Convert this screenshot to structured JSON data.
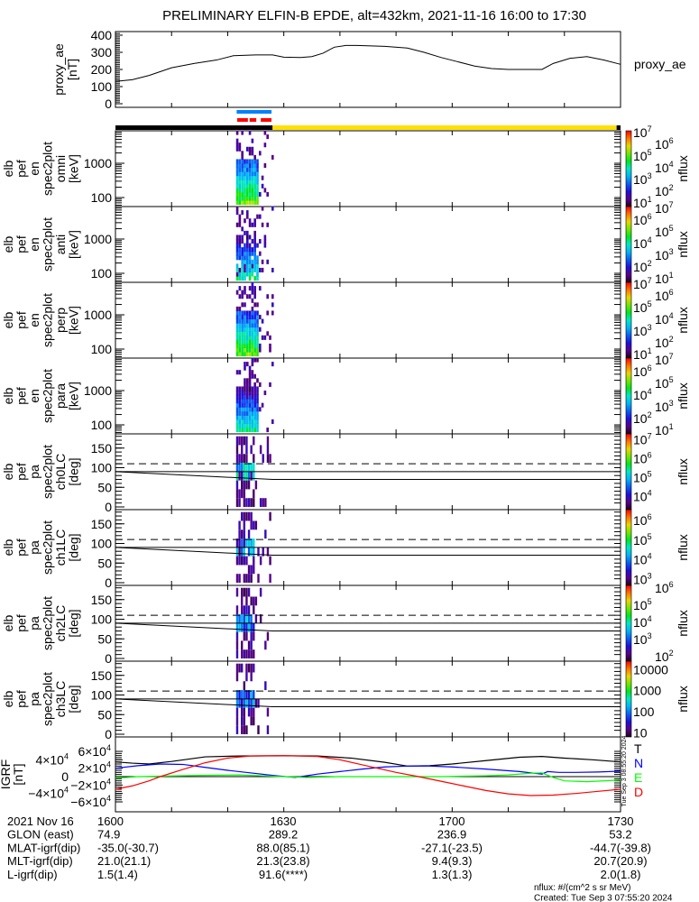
{
  "title": "PRELIMINARY ELFIN-B EPDE, alt=432km, 2021-11-16 16:00 to 17:30",
  "chart_data": [
    {
      "type": "line",
      "name": "proxy_ae",
      "ylabel_lines": [
        "proxy_ae",
        "[nT]"
      ],
      "legend": "proxy_ae",
      "ylim": [
        0,
        410
      ],
      "yticks": [
        "0",
        "100",
        "200",
        "300",
        "400"
      ],
      "t_min": [
        0,
        3,
        6,
        10,
        14,
        18,
        21,
        25,
        28,
        30,
        33,
        35,
        37,
        39,
        41,
        43,
        48,
        52,
        55,
        58,
        61,
        64,
        67,
        70,
        73,
        76,
        78,
        81,
        84,
        87,
        90
      ],
      "values": [
        130,
        140,
        165,
        210,
        235,
        255,
        280,
        285,
        285,
        272,
        270,
        275,
        295,
        330,
        340,
        340,
        335,
        325,
        300,
        270,
        245,
        220,
        205,
        200,
        200,
        200,
        235,
        265,
        275,
        255,
        230
      ]
    },
    {
      "type": "heatmap",
      "name": "omni",
      "ylabel_lines": [
        "elb",
        "pef",
        "en",
        "spec2plot",
        "omni",
        "[keV]"
      ],
      "yticks": [
        "1000",
        "100"
      ],
      "colorbar_label": "nflux",
      "colorbar_ticks": [
        {
          "base": "10",
          "exp": "7",
          "log": 7
        },
        {
          "base": "10",
          "exp": "6",
          "log": 6
        },
        {
          "base": "10",
          "exp": "5",
          "log": 5
        },
        {
          "base": "10",
          "exp": "4",
          "log": 4
        },
        {
          "base": "10",
          "exp": "3",
          "log": 3
        },
        {
          "base": "10",
          "exp": "2",
          "log": 2
        },
        {
          "base": "10",
          "exp": "1",
          "log": 1
        }
      ],
      "colorbar_range_log": [
        0.7,
        7.15
      ]
    },
    {
      "type": "heatmap",
      "name": "anti",
      "ylabel_lines": [
        "elb",
        "pef",
        "en",
        "spec2plot",
        "anti",
        "[keV]"
      ],
      "yticks": [
        "1000",
        "100"
      ],
      "colorbar_label": "nflux",
      "colorbar_ticks": [
        {
          "base": "10",
          "exp": "7",
          "log": 7
        },
        {
          "base": "10",
          "exp": "6",
          "log": 6
        },
        {
          "base": "10",
          "exp": "5",
          "log": 5
        },
        {
          "base": "10",
          "exp": "4",
          "log": 4
        },
        {
          "base": "10",
          "exp": "3",
          "log": 3
        },
        {
          "base": "10",
          "exp": "2",
          "log": 2
        },
        {
          "base": "10",
          "exp": "1",
          "log": 1
        }
      ],
      "colorbar_range_log": [
        0.7,
        7.15
      ]
    },
    {
      "type": "heatmap",
      "name": "perp",
      "ylabel_lines": [
        "elb",
        "pef",
        "en",
        "spec2plot",
        "perp",
        "[keV]"
      ],
      "yticks": [
        "1000",
        "100"
      ],
      "colorbar_label": "nflux",
      "colorbar_ticks": [
        {
          "base": "10",
          "exp": "7",
          "log": 7
        },
        {
          "base": "10",
          "exp": "6",
          "log": 6
        },
        {
          "base": "10",
          "exp": "5",
          "log": 5
        },
        {
          "base": "10",
          "exp": "4",
          "log": 4
        },
        {
          "base": "10",
          "exp": "3",
          "log": 3
        },
        {
          "base": "10",
          "exp": "2",
          "log": 2
        },
        {
          "base": "10",
          "exp": "1",
          "log": 1
        }
      ],
      "colorbar_range_log": [
        0.7,
        7.15
      ]
    },
    {
      "type": "heatmap",
      "name": "para",
      "ylabel_lines": [
        "elb",
        "pef",
        "en",
        "spec2plot",
        "para",
        "[keV]"
      ],
      "yticks": [
        "1000",
        "100"
      ],
      "colorbar_label": "nflux",
      "colorbar_ticks": [
        {
          "base": "10",
          "exp": "7",
          "log": 7
        },
        {
          "base": "10",
          "exp": "6",
          "log": 6
        },
        {
          "base": "10",
          "exp": "5",
          "log": 5
        },
        {
          "base": "10",
          "exp": "4",
          "log": 4
        },
        {
          "base": "10",
          "exp": "3",
          "log": 3
        },
        {
          "base": "10",
          "exp": "2",
          "log": 2
        },
        {
          "base": "10",
          "exp": "1",
          "log": 1
        }
      ],
      "colorbar_range_log": [
        0.7,
        7.15
      ]
    },
    {
      "type": "heatmap",
      "name": "ch0LC",
      "ylabel_lines": [
        "elb",
        "pef",
        "pa",
        "spec2plot",
        "ch0LC",
        "[deg]"
      ],
      "yticks": [
        "0",
        "50",
        "100",
        "150"
      ],
      "colorbar_label": "nflux",
      "colorbar_ticks": [
        {
          "base": "10",
          "exp": "7",
          "log": 7
        },
        {
          "base": "10",
          "exp": "6",
          "log": 6
        },
        {
          "base": "10",
          "exp": "5",
          "log": 5
        },
        {
          "base": "10",
          "exp": "4",
          "log": 4
        }
      ],
      "colorbar_range_log": [
        3.3,
        7.3
      ]
    },
    {
      "type": "heatmap",
      "name": "ch1LC",
      "ylabel_lines": [
        "elb",
        "pef",
        "pa",
        "spec2plot",
        "ch1LC",
        "[deg]"
      ],
      "yticks": [
        "0",
        "50",
        "100",
        "150"
      ],
      "colorbar_label": "nflux",
      "colorbar_ticks": [
        {
          "base": "10",
          "exp": "6",
          "log": 6
        },
        {
          "base": "10",
          "exp": "5",
          "log": 5
        },
        {
          "base": "10",
          "exp": "4",
          "log": 4
        },
        {
          "base": "10",
          "exp": "3",
          "log": 3
        }
      ],
      "colorbar_range_log": [
        2.7,
        6.55
      ]
    },
    {
      "type": "heatmap",
      "name": "ch2LC",
      "ylabel_lines": [
        "elb",
        "pef",
        "pa",
        "spec2plot",
        "ch2LC",
        "[deg]"
      ],
      "yticks": [
        "0",
        "50",
        "100",
        "150"
      ],
      "colorbar_label": "nflux",
      "colorbar_ticks": [
        {
          "base": "10",
          "exp": "6",
          "log": 6
        },
        {
          "base": "10",
          "exp": "5",
          "log": 5
        },
        {
          "base": "10",
          "exp": "4",
          "log": 4
        },
        {
          "base": "10",
          "exp": "3",
          "log": 3
        },
        {
          "base": "10",
          "exp": "2",
          "log": 2
        }
      ],
      "colorbar_range_log": [
        1.73,
        6.15
      ]
    },
    {
      "type": "heatmap",
      "name": "ch3LC",
      "ylabel_lines": [
        "elb",
        "pef",
        "pa",
        "spec2plot",
        "ch3LC",
        "[deg]"
      ],
      "yticks": [
        "0",
        "50",
        "100",
        "150"
      ],
      "colorbar_label": "nflux",
      "colorbar_ticks": [
        {
          "base": "10000",
          "exp": "",
          "log": 4
        },
        {
          "base": "1000",
          "exp": "",
          "log": 3
        },
        {
          "base": "100",
          "exp": "",
          "log": 2
        },
        {
          "base": "10",
          "exp": "",
          "log": 1
        }
      ],
      "colorbar_range_log": [
        0.8,
        4.4
      ]
    },
    {
      "type": "line",
      "name": "IGRF",
      "ylabel_lines": [
        "IGRF",
        "[nT]"
      ],
      "ylim": [
        -66000,
        66000
      ],
      "yticks": [
        {
          "base": "6×10",
          "exp": "4",
          "v": 60000
        },
        {
          "base": "4×10",
          "exp": "4",
          "v": 40000
        },
        {
          "base": "2×10",
          "exp": "4",
          "v": 20000
        },
        {
          "base": "0",
          "exp": "",
          "v": 0
        },
        {
          "base": "−2×10",
          "exp": "4",
          "v": -20000
        },
        {
          "base": "−4×10",
          "exp": "4",
          "v": -40000
        },
        {
          "base": "−6×10",
          "exp": "4",
          "v": -60000
        }
      ],
      "side_stamp": "Tue Sep  3 08:55:20 2024",
      "series": [
        {
          "name": "T",
          "color": "#000000",
          "t_min": [
            0,
            3,
            6,
            10,
            16,
            22,
            30,
            36,
            42,
            48,
            52,
            56,
            60,
            66,
            72,
            76,
            80,
            85,
            90
          ],
          "values": [
            35000,
            32000,
            30000,
            36000,
            47000,
            49000,
            49500,
            49000,
            44000,
            34000,
            25000,
            26000,
            30000,
            38000,
            46000,
            48000,
            44000,
            40000,
            35000
          ]
        },
        {
          "name": "N",
          "color": "#0000ff",
          "t_min": [
            0,
            4,
            8,
            12,
            16,
            20,
            24,
            28,
            32,
            36,
            40,
            44,
            48,
            52,
            56,
            60,
            66,
            72,
            76,
            77,
            79,
            82,
            86,
            90
          ],
          "values": [
            20000,
            26000,
            30000,
            29000,
            22000,
            15000,
            9000,
            3000,
            -2000,
            6000,
            12000,
            18000,
            23000,
            25000,
            25000,
            23000,
            18000,
            12000,
            6000,
            12000,
            10000,
            10000,
            11000,
            13000
          ]
        },
        {
          "name": "E",
          "color": "#00ff00",
          "t_min": [
            0,
            2,
            4,
            8,
            15,
            22,
            26,
            30,
            34,
            40,
            46,
            52,
            58,
            62,
            66,
            70,
            74,
            76,
            78,
            80,
            84,
            90
          ],
          "values": [
            -3000,
            -2000,
            0,
            1000,
            3000,
            4000,
            2000,
            0,
            -2000,
            0,
            0,
            0,
            0,
            1000,
            2000,
            4000,
            8000,
            9000,
            -2000,
            -10000,
            -12000,
            -8000
          ]
        },
        {
          "name": "D",
          "color": "#ff0000",
          "t_min": [
            0,
            3,
            6,
            8,
            12,
            16,
            20,
            24,
            30,
            36,
            40,
            44,
            50,
            54,
            58,
            62,
            66,
            70,
            74,
            78,
            82,
            86,
            90
          ],
          "values": [
            -30000,
            -22000,
            -10000,
            0,
            17000,
            33000,
            44000,
            49000,
            50000,
            48000,
            40000,
            28000,
            10000,
            0,
            -11000,
            -22000,
            -33000,
            -41000,
            -45000,
            -44000,
            -40000,
            -35000,
            -30000
          ]
        }
      ]
    }
  ],
  "status_bars": {
    "top_color": "#0080ff",
    "mid_color": "#ff0000",
    "night_color": "#000000",
    "day_color": "#ffe000"
  },
  "footer": {
    "rows": [
      {
        "label": "2021 Nov 16",
        "values": [
          "1600",
          "1630",
          "1700",
          "1730"
        ]
      },
      {
        "label": "GLON (east)",
        "values": [
          "74.9",
          "289.2",
          "236.9",
          "53.2"
        ]
      },
      {
        "label": "MLAT-igrf(dip)",
        "values": [
          "-35.0(-30.7)",
          "88.0(85.1)",
          "-27.1(-23.5)",
          "-44.7(-39.8)"
        ]
      },
      {
        "label": "MLT-igrf(dip)",
        "values": [
          "21.0(21.1)",
          "21.3(23.8)",
          "9.4(9.3)",
          "20.7(20.9)"
        ]
      },
      {
        "label": "L-igrf(dip)",
        "values": [
          "1.5(1.4)",
          "91.6(****)",
          "1.3(1.3)",
          "2.0(1.8)"
        ]
      }
    ],
    "units_note": "nflux: #/(cm^2 s sr MeV)",
    "created": "Created: Tue Sep  3 07:55:20 2024"
  }
}
